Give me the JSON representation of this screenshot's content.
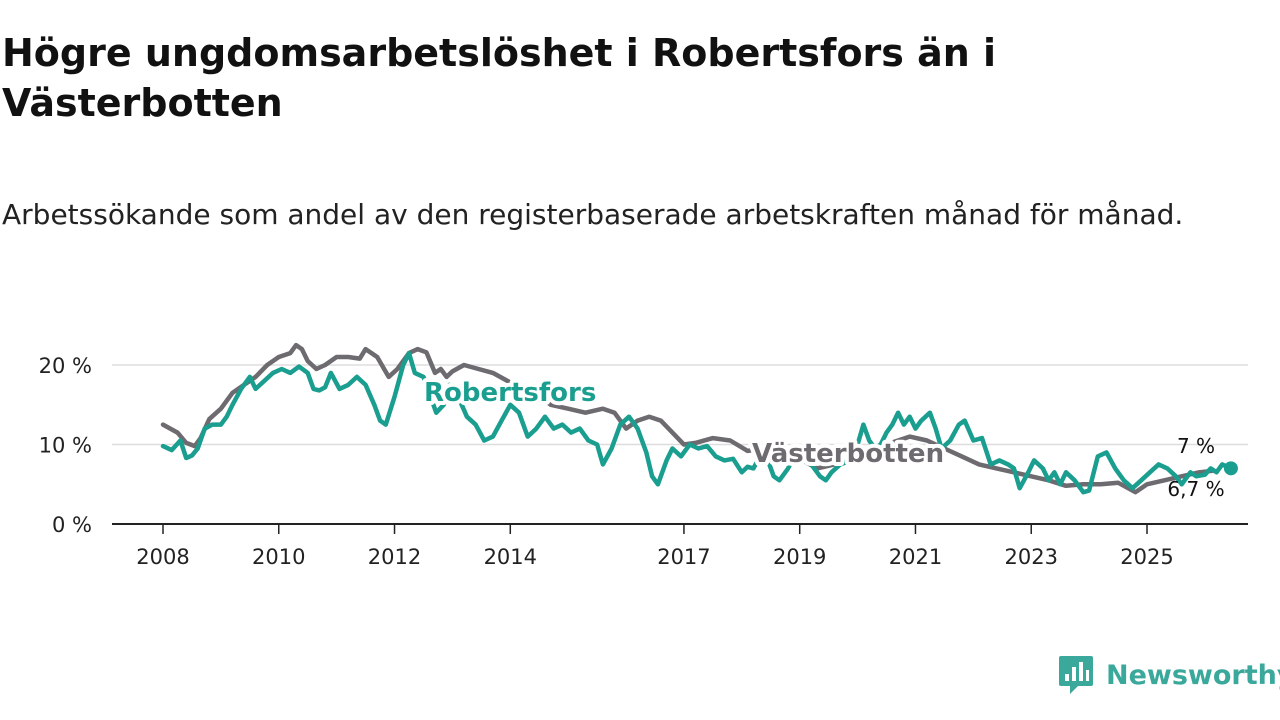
{
  "title": "Högre ungdomsarbetslöshet i Robertsfors än i Västerbotten",
  "subtitle": "Arbetssökande som andel av den registerbaserade arbetskraften månad för månad.",
  "brand": {
    "name": "Newsworthy",
    "color": "#3aa89b",
    "icon": "newsworthy-logo-icon"
  },
  "colors": {
    "robertsfors": "#1a9e8f",
    "vasterbotten": "#6d6a70",
    "grid": "#dddddd",
    "axis": "#222222"
  },
  "chart_data": {
    "type": "line",
    "title": "Högre ungdomsarbetslöshet i Robertsfors än i Västerbotten",
    "xlabel": "",
    "ylabel": "",
    "unit": "%",
    "xlim": [
      2007.5,
      2026.4
    ],
    "ylim": [
      0,
      20
    ],
    "yticks": [
      0,
      10,
      20
    ],
    "ytick_labels": [
      "0 %",
      "10 %",
      "20 %"
    ],
    "xticks": [
      2008,
      2010,
      2012,
      2014,
      2017,
      2019,
      2021,
      2023,
      2025
    ],
    "xtick_labels": [
      "2008",
      "2010",
      "2012",
      "2014",
      "2017",
      "2019",
      "2021",
      "2023",
      "2025"
    ],
    "grid": true,
    "series": [
      {
        "name": "Västerbotten",
        "label": "Västerbotten",
        "color": "#6d6a70",
        "end_label": "6,7 %",
        "points": [
          [
            2008.0,
            12.5
          ],
          [
            2008.25,
            11.5
          ],
          [
            2008.4,
            10.2
          ],
          [
            2008.55,
            9.8
          ],
          [
            2008.65,
            10.8
          ],
          [
            2008.8,
            13.2
          ],
          [
            2009.0,
            14.5
          ],
          [
            2009.2,
            16.5
          ],
          [
            2009.4,
            17.5
          ],
          [
            2009.6,
            18.5
          ],
          [
            2009.8,
            20.0
          ],
          [
            2010.0,
            21.0
          ],
          [
            2010.2,
            21.5
          ],
          [
            2010.3,
            22.5
          ],
          [
            2010.4,
            22.0
          ],
          [
            2010.5,
            20.5
          ],
          [
            2010.65,
            19.5
          ],
          [
            2010.8,
            20.0
          ],
          [
            2011.0,
            21.0
          ],
          [
            2011.2,
            21.0
          ],
          [
            2011.4,
            20.8
          ],
          [
            2011.5,
            22.0
          ],
          [
            2011.7,
            21.0
          ],
          [
            2011.9,
            18.5
          ],
          [
            2012.05,
            19.5
          ],
          [
            2012.25,
            21.5
          ],
          [
            2012.4,
            22.0
          ],
          [
            2012.55,
            21.6
          ],
          [
            2012.7,
            19.0
          ],
          [
            2012.8,
            19.5
          ],
          [
            2012.9,
            18.5
          ],
          [
            2013.0,
            19.2
          ],
          [
            2013.2,
            20.0
          ],
          [
            2013.45,
            19.5
          ],
          [
            2013.7,
            19.0
          ],
          [
            2013.95,
            18.0
          ],
          [
            2014.2,
            17.0
          ],
          [
            2014.4,
            16.5
          ],
          [
            2014.7,
            15.0
          ],
          [
            2015.0,
            14.5
          ],
          [
            2015.3,
            14.0
          ],
          [
            2015.6,
            14.5
          ],
          [
            2015.8,
            14.0
          ],
          [
            2016.0,
            12.0
          ],
          [
            2016.2,
            13.0
          ],
          [
            2016.4,
            13.5
          ],
          [
            2016.6,
            13.0
          ],
          [
            2016.8,
            11.5
          ],
          [
            2017.0,
            10.0
          ],
          [
            2017.2,
            10.2
          ],
          [
            2017.5,
            10.8
          ],
          [
            2017.8,
            10.5
          ],
          [
            2018.1,
            9.2
          ],
          [
            2018.4,
            9.5
          ],
          [
            2018.7,
            9.0
          ],
          [
            2019.0,
            8.2
          ],
          [
            2019.3,
            7.0
          ],
          [
            2019.6,
            7.5
          ],
          [
            2019.9,
            8.0
          ],
          [
            2020.2,
            8.5
          ],
          [
            2020.5,
            10.0
          ],
          [
            2020.7,
            10.5
          ],
          [
            2020.9,
            11.0
          ],
          [
            2021.2,
            10.5
          ],
          [
            2021.5,
            9.5
          ],
          [
            2021.8,
            8.5
          ],
          [
            2022.1,
            7.5
          ],
          [
            2022.4,
            7.0
          ],
          [
            2022.7,
            6.5
          ],
          [
            2023.0,
            6.0
          ],
          [
            2023.3,
            5.5
          ],
          [
            2023.6,
            4.8
          ],
          [
            2023.9,
            5.0
          ],
          [
            2024.2,
            5.0
          ],
          [
            2024.5,
            5.2
          ],
          [
            2024.8,
            4.0
          ],
          [
            2025.0,
            5.0
          ],
          [
            2025.3,
            5.5
          ],
          [
            2025.6,
            6.0
          ],
          [
            2025.9,
            6.5
          ],
          [
            2026.15,
            6.7
          ]
        ]
      },
      {
        "name": "Robertsfors",
        "label": "Robertsfors",
        "color": "#1a9e8f",
        "end_label": "7 %",
        "points": [
          [
            2008.0,
            9.8
          ],
          [
            2008.15,
            9.3
          ],
          [
            2008.3,
            10.5
          ],
          [
            2008.4,
            8.3
          ],
          [
            2008.5,
            8.6
          ],
          [
            2008.6,
            9.5
          ],
          [
            2008.72,
            12.0
          ],
          [
            2008.85,
            12.5
          ],
          [
            2009.0,
            12.5
          ],
          [
            2009.1,
            13.5
          ],
          [
            2009.2,
            15.0
          ],
          [
            2009.35,
            17.0
          ],
          [
            2009.5,
            18.5
          ],
          [
            2009.6,
            17.0
          ],
          [
            2009.75,
            18.0
          ],
          [
            2009.9,
            19.0
          ],
          [
            2010.05,
            19.5
          ],
          [
            2010.2,
            19.0
          ],
          [
            2010.35,
            19.8
          ],
          [
            2010.5,
            19.0
          ],
          [
            2010.6,
            17.0
          ],
          [
            2010.7,
            16.8
          ],
          [
            2010.8,
            17.2
          ],
          [
            2010.9,
            19.0
          ],
          [
            2011.05,
            17.0
          ],
          [
            2011.2,
            17.5
          ],
          [
            2011.35,
            18.5
          ],
          [
            2011.5,
            17.5
          ],
          [
            2011.65,
            15.0
          ],
          [
            2011.75,
            13.0
          ],
          [
            2011.85,
            12.5
          ],
          [
            2012.0,
            16.0
          ],
          [
            2012.15,
            20.0
          ],
          [
            2012.25,
            21.5
          ],
          [
            2012.35,
            19.0
          ],
          [
            2012.5,
            18.5
          ],
          [
            2012.6,
            16.5
          ],
          [
            2012.72,
            14.0
          ],
          [
            2012.85,
            15.0
          ],
          [
            2012.95,
            17.5
          ],
          [
            2013.1,
            16.0
          ],
          [
            2013.25,
            13.5
          ],
          [
            2013.4,
            12.5
          ],
          [
            2013.55,
            10.5
          ],
          [
            2013.7,
            11.0
          ],
          [
            2013.85,
            13.0
          ],
          [
            2014.0,
            15.0
          ],
          [
            2014.15,
            14.0
          ],
          [
            2014.3,
            11.0
          ],
          [
            2014.45,
            12.0
          ],
          [
            2014.6,
            13.5
          ],
          [
            2014.75,
            12.0
          ],
          [
            2014.9,
            12.5
          ],
          [
            2015.05,
            11.5
          ],
          [
            2015.2,
            12.0
          ],
          [
            2015.35,
            10.5
          ],
          [
            2015.5,
            10.0
          ],
          [
            2015.6,
            7.5
          ],
          [
            2015.75,
            9.5
          ],
          [
            2015.9,
            12.5
          ],
          [
            2016.05,
            13.5
          ],
          [
            2016.2,
            12.0
          ],
          [
            2016.35,
            9.0
          ],
          [
            2016.45,
            6.0
          ],
          [
            2016.55,
            5.0
          ],
          [
            2016.7,
            8.0
          ],
          [
            2016.8,
            9.5
          ],
          [
            2016.95,
            8.5
          ],
          [
            2017.1,
            10.0
          ],
          [
            2017.25,
            9.5
          ],
          [
            2017.4,
            9.8
          ],
          [
            2017.55,
            8.5
          ],
          [
            2017.7,
            8.0
          ],
          [
            2017.85,
            8.2
          ],
          [
            2018.0,
            6.5
          ],
          [
            2018.1,
            7.2
          ],
          [
            2018.2,
            7.0
          ],
          [
            2018.35,
            9.0
          ],
          [
            2018.45,
            8.0
          ],
          [
            2018.55,
            6.0
          ],
          [
            2018.65,
            5.5
          ],
          [
            2018.8,
            7.0
          ],
          [
            2018.9,
            8.5
          ],
          [
            2019.05,
            8.0
          ],
          [
            2019.2,
            7.5
          ],
          [
            2019.35,
            6.0
          ],
          [
            2019.45,
            5.5
          ],
          [
            2019.55,
            6.5
          ],
          [
            2019.7,
            7.5
          ],
          [
            2019.9,
            8.0
          ],
          [
            2020.0,
            10.0
          ],
          [
            2020.1,
            12.5
          ],
          [
            2020.2,
            10.5
          ],
          [
            2020.3,
            9.5
          ],
          [
            2020.4,
            10.0
          ],
          [
            2020.5,
            11.5
          ],
          [
            2020.6,
            12.5
          ],
          [
            2020.7,
            14.0
          ],
          [
            2020.8,
            12.5
          ],
          [
            2020.9,
            13.5
          ],
          [
            2021.0,
            12.0
          ],
          [
            2021.1,
            13.0
          ],
          [
            2021.25,
            14.0
          ],
          [
            2021.35,
            12.0
          ],
          [
            2021.45,
            9.5
          ],
          [
            2021.6,
            10.5
          ],
          [
            2021.75,
            12.5
          ],
          [
            2021.85,
            13.0
          ],
          [
            2022.0,
            10.5
          ],
          [
            2022.15,
            10.8
          ],
          [
            2022.3,
            7.5
          ],
          [
            2022.45,
            8.0
          ],
          [
            2022.6,
            7.5
          ],
          [
            2022.7,
            7.0
          ],
          [
            2022.8,
            4.5
          ],
          [
            2022.95,
            6.5
          ],
          [
            2023.05,
            8.0
          ],
          [
            2023.2,
            7.0
          ],
          [
            2023.3,
            5.5
          ],
          [
            2023.4,
            6.5
          ],
          [
            2023.5,
            5.0
          ],
          [
            2023.6,
            6.5
          ],
          [
            2023.75,
            5.5
          ],
          [
            2023.9,
            4.0
          ],
          [
            2024.0,
            4.2
          ],
          [
            2024.15,
            8.5
          ],
          [
            2024.3,
            9.0
          ],
          [
            2024.45,
            7.0
          ],
          [
            2024.6,
            5.5
          ],
          [
            2024.75,
            4.5
          ],
          [
            2024.9,
            5.5
          ],
          [
            2025.05,
            6.5
          ],
          [
            2025.2,
            7.5
          ],
          [
            2025.35,
            7.0
          ],
          [
            2025.5,
            6.0
          ],
          [
            2025.6,
            5.0
          ],
          [
            2025.75,
            6.5
          ],
          [
            2025.85,
            6.0
          ],
          [
            2026.0,
            6.2
          ],
          [
            2026.1,
            7.0
          ],
          [
            2026.2,
            6.5
          ],
          [
            2026.3,
            7.5
          ],
          [
            2026.45,
            7.0
          ]
        ]
      }
    ]
  }
}
